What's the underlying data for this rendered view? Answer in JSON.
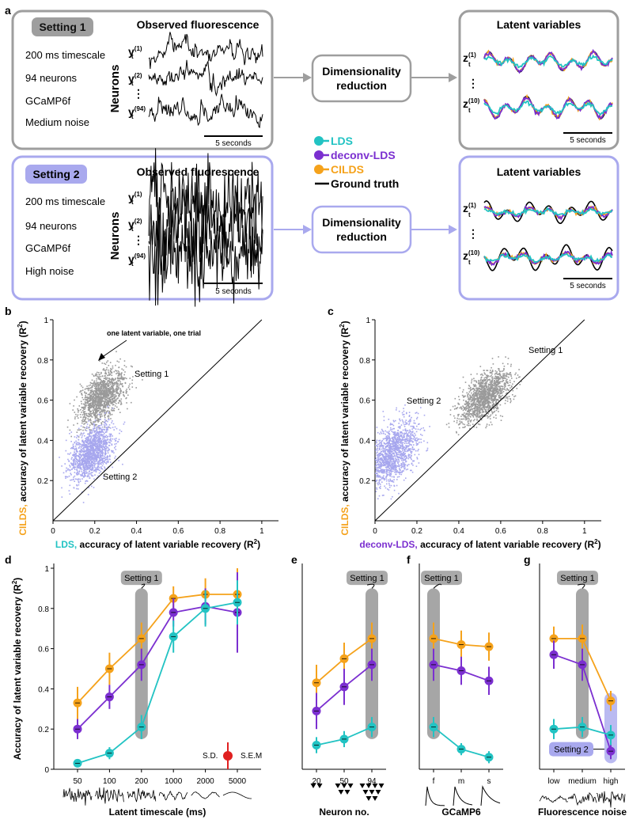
{
  "panel_letters": {
    "a": "a",
    "b": "b",
    "c": "c",
    "d": "d",
    "e": "e",
    "f": "f",
    "g": "g"
  },
  "colors": {
    "lds": "#22c3c3",
    "deconv": "#7b2fd0",
    "cilds": "#f5a21b",
    "truth": "#000000",
    "setting1_box": "#9e9e9e",
    "setting2_box": "#a9a9ee",
    "gray_points": "#9a9a9a",
    "lav_points": "#a7a7ee",
    "highlight": "#888888"
  },
  "panel_a": {
    "setting1": {
      "badge": "Setting 1",
      "title": "Observed fluorescence",
      "lines": [
        "200 ms timescale",
        "94 neurons",
        "GCaMP6f",
        "Medium noise"
      ],
      "neurons_label": "Neurons",
      "y_labels": {
        "y1": "y",
        "y1_sup": "(1)",
        "y2": "y",
        "y2_sup": "(2)",
        "y94": "y",
        "y94_sup": "(94)",
        "sub": "t"
      },
      "scale": "5 seconds"
    },
    "setting2": {
      "badge": "Setting 2",
      "title": "Observed fluorescence",
      "lines": [
        "200 ms timescale",
        "94 neurons",
        "GCaMP6f",
        "High noise"
      ],
      "neurons_label": "Neurons",
      "scale": "5 seconds"
    },
    "dim_red": [
      "Dimensionality",
      "reduction"
    ],
    "latent_title": "Latent variables",
    "z_labels": {
      "z": "z",
      "sup1": "(1)",
      "sup10": "(10)",
      "sub": "t"
    },
    "latent_scale": "5 seconds",
    "dots": "⋮",
    "legend": [
      "LDS",
      "deconv-LDS",
      "CILDS",
      "Ground truth"
    ]
  },
  "chart_data": [
    {
      "panel": "b",
      "type": "scatter",
      "xlabel_colored": "LDS,",
      "xlabel": "accuracy of latent variable recovery (R",
      "ylabel_colored": "CILDS,",
      "ylabel": "accuracy of latent variable recovery (R",
      "xticks": [
        "0",
        "0.2",
        "0.4",
        "0.6",
        "0.8",
        "1"
      ],
      "yticks": [
        "0.2",
        "0.4",
        "0.6",
        "0.8",
        "1"
      ],
      "xlim": [
        0,
        1.08
      ],
      "ylim": [
        0,
        1
      ],
      "annotation": "one latent variable, one trial",
      "series": [
        {
          "label": "Setting 1",
          "center": [
            0.23,
            0.62
          ],
          "spread": [
            0.055,
            0.055
          ],
          "color": "gray"
        },
        {
          "label": "Setting 2",
          "center": [
            0.18,
            0.34
          ],
          "spread": [
            0.05,
            0.06
          ],
          "color": "lavender"
        }
      ]
    },
    {
      "panel": "c",
      "type": "scatter",
      "xlabel_colored": "deconv-LDS,",
      "xlabel": "accuracy of latent variable recovery (R",
      "ylabel_colored": "CILDS,",
      "ylabel": "accuracy of latent variable recovery (R",
      "xticks": [
        "0",
        "0.2",
        "0.4",
        "0.6",
        "0.8",
        "1"
      ],
      "yticks": [
        "0.2",
        "0.4",
        "0.6",
        "0.8",
        "1"
      ],
      "xlim": [
        0,
        1.08
      ],
      "ylim": [
        0,
        1
      ],
      "series": [
        {
          "label": "Setting 1",
          "center": [
            0.52,
            0.62
          ],
          "spread": [
            0.06,
            0.055
          ],
          "color": "gray"
        },
        {
          "label": "Setting 2",
          "center": [
            0.08,
            0.34
          ],
          "spread": [
            0.06,
            0.07
          ],
          "color": "lavender"
        }
      ]
    },
    {
      "panel": "d",
      "type": "line",
      "ylabel": "Accuracy of latent variable recovery (R",
      "xlabel": "Latent timescale (ms)",
      "categories": [
        "50",
        "100",
        "200",
        "1000",
        "2000",
        "5000"
      ],
      "yticks": [
        "0",
        "0.2",
        "0.4",
        "0.6",
        "0.8",
        "1"
      ],
      "ylim": [
        0,
        1
      ],
      "highlight": "Setting 1",
      "highlight_index": 2,
      "legend_sd": "S.D.",
      "legend_sem": "S.E.M",
      "series": [
        {
          "name": "CILDS",
          "values": [
            0.33,
            0.5,
            0.65,
            0.85,
            0.87,
            0.87
          ],
          "sd": [
            0.08,
            0.08,
            0.08,
            0.06,
            0.08,
            0.13
          ]
        },
        {
          "name": "deconv-LDS",
          "values": [
            0.2,
            0.36,
            0.52,
            0.78,
            0.81,
            0.78
          ],
          "sd": [
            0.05,
            0.06,
            0.08,
            0.07,
            0.09,
            0.2
          ]
        },
        {
          "name": "LDS",
          "values": [
            0.03,
            0.08,
            0.21,
            0.66,
            0.8,
            0.83
          ],
          "sd": [
            0.01,
            0.03,
            0.06,
            0.08,
            0.09,
            0.11
          ]
        }
      ]
    },
    {
      "panel": "e",
      "type": "line",
      "xlabel": "Neuron no.",
      "categories": [
        "20",
        "50",
        "94"
      ],
      "ylim": [
        0,
        1
      ],
      "highlight": "Setting 1",
      "highlight_index": 2,
      "series": [
        {
          "name": "CILDS",
          "values": [
            0.43,
            0.55,
            0.65
          ],
          "sd": [
            0.09,
            0.08,
            0.08
          ]
        },
        {
          "name": "deconv-LDS",
          "values": [
            0.29,
            0.41,
            0.52
          ],
          "sd": [
            0.09,
            0.09,
            0.08
          ]
        },
        {
          "name": "LDS",
          "values": [
            0.12,
            0.15,
            0.21
          ],
          "sd": [
            0.04,
            0.04,
            0.05
          ]
        }
      ]
    },
    {
      "panel": "f",
      "type": "line",
      "xlabel": "GCaMP6",
      "categories": [
        "f",
        "m",
        "s"
      ],
      "ylim": [
        0,
        1
      ],
      "highlight": "Setting 1",
      "highlight_index": 0,
      "series": [
        {
          "name": "CILDS",
          "values": [
            0.65,
            0.62,
            0.61
          ],
          "sd": [
            0.08,
            0.07,
            0.07
          ]
        },
        {
          "name": "deconv-LDS",
          "values": [
            0.52,
            0.49,
            0.44
          ],
          "sd": [
            0.08,
            0.07,
            0.07
          ]
        },
        {
          "name": "LDS",
          "values": [
            0.21,
            0.1,
            0.06
          ],
          "sd": [
            0.05,
            0.03,
            0.03
          ]
        }
      ]
    },
    {
      "panel": "g",
      "type": "line",
      "xlabel": "Fluorescence noise",
      "categories": [
        "low",
        "medium",
        "high"
      ],
      "ylim": [
        0,
        1
      ],
      "highlight": "Setting 1",
      "highlight_index": 1,
      "highlight2": "Setting 2",
      "highlight2_index": 2,
      "series": [
        {
          "name": "CILDS",
          "values": [
            0.65,
            0.65,
            0.34
          ],
          "sd": [
            0.06,
            0.07,
            0.05
          ]
        },
        {
          "name": "deconv-LDS",
          "values": [
            0.57,
            0.52,
            0.09
          ],
          "sd": [
            0.07,
            0.08,
            0.04
          ]
        },
        {
          "name": "LDS",
          "values": [
            0.2,
            0.21,
            0.17
          ],
          "sd": [
            0.05,
            0.05,
            0.05
          ]
        }
      ]
    }
  ]
}
